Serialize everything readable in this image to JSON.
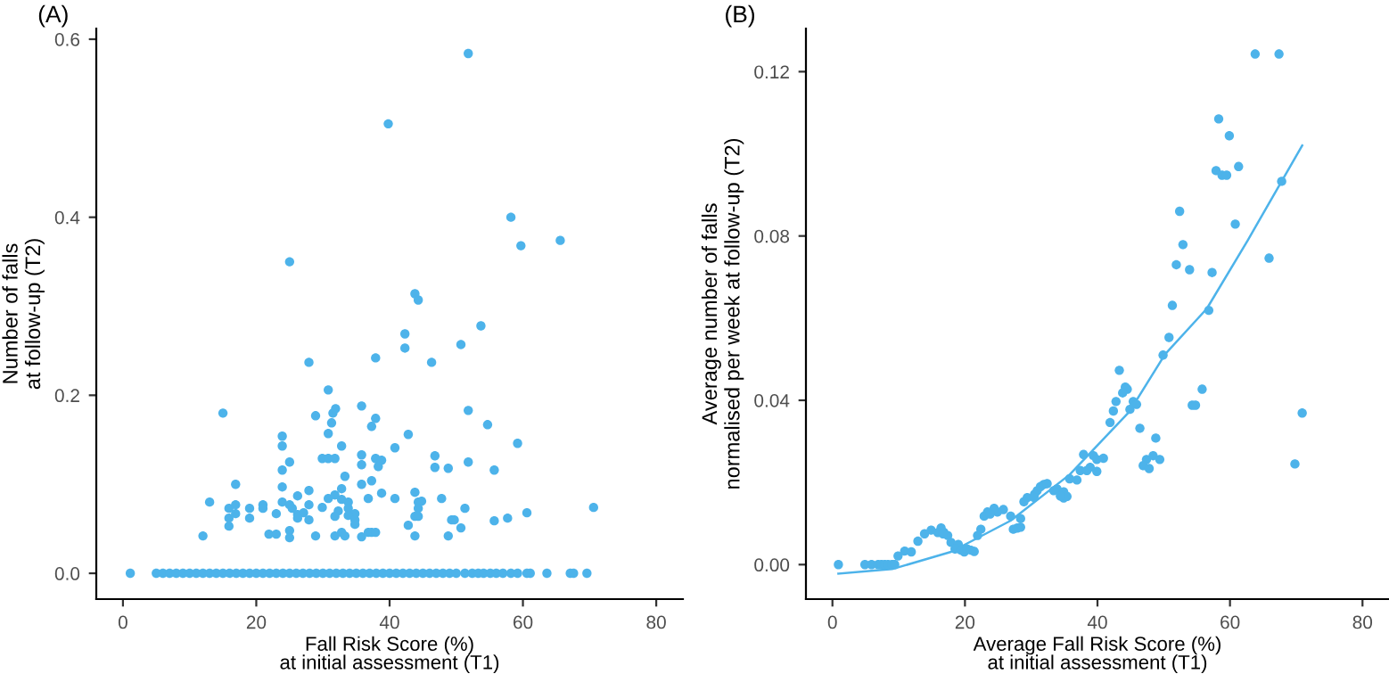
{
  "chart_data": [
    {
      "type": "scatter",
      "title": "(A)",
      "xlabel": "Fall Risk Score (%)\nat initial assessment (T1)",
      "ylabel": "Number of falls\nat follow-up (T2)",
      "xlim": [
        -4,
        84
      ],
      "ylim": [
        -0.029,
        0.612
      ],
      "xticks": [
        0,
        20,
        40,
        60,
        80
      ],
      "yticks": [
        {
          "value": 0,
          "label": "0.0"
        },
        {
          "value": 0.2,
          "label": "0.2"
        },
        {
          "value": 0.4,
          "label": "0.4"
        },
        {
          "value": 0.6,
          "label": "0.6"
        }
      ],
      "grid": false,
      "legend": false,
      "series": [
        {
          "color": "#4db3ea",
          "marker": "circle",
          "x": [
            51.8,
            39.8,
            58.2,
            59.7,
            65.6,
            25.0,
            43.8,
            44.3,
            53.7,
            42.3,
            42.3,
            50.7,
            27.9,
            37.9,
            46.3,
            30.8,
            15.0,
            28.9,
            31.5,
            31.9,
            31.3,
            35.8,
            37.9,
            37.3,
            51.8,
            54.7,
            30.8,
            42.8,
            23.9,
            23.9,
            32.8,
            40.8,
            59.2,
            29.9,
            30.8,
            31.8,
            25.0,
            35.8,
            37.9,
            38.8,
            38.3,
            35.8,
            46.8,
            51.8,
            46.8,
            48.8,
            55.7,
            23.9,
            33.3,
            16.9,
            37.3,
            35.8,
            23.9,
            32.8,
            27.9,
            43.8,
            38.8,
            26.2,
            30.8,
            31.8,
            36.8,
            40.8,
            47.8,
            13.0,
            23.9,
            32.8,
            33.8,
            44.3,
            44.8,
            25.0,
            27.9,
            16.9,
            21.0,
            15.9,
            19.0,
            21.0,
            25.4,
            29.9,
            33.8,
            51.3,
            70.6,
            16.9,
            23.0,
            26.2,
            27.1,
            32.3,
            34.8,
            44.3,
            60.6,
            15.9,
            19.0,
            26.2,
            27.9,
            31.8,
            33.8,
            34.8,
            43.8,
            44.3,
            49.3,
            49.7,
            55.7,
            57.7,
            15.9,
            34.8,
            42.8,
            50.7,
            25.0,
            21.9,
            23.0,
            12.0,
            25.0,
            28.9,
            31.8,
            32.8,
            33.3,
            35.8,
            36.8,
            37.3,
            37.9,
            43.8,
            48.8,
            1.1,
            5,
            6,
            7,
            8,
            9,
            10,
            11,
            12,
            13,
            14,
            15,
            16,
            17,
            18,
            19,
            20,
            21,
            22,
            23,
            24,
            25,
            26,
            27,
            28,
            29,
            30,
            31,
            32,
            33,
            34,
            35,
            36,
            37,
            38,
            39,
            40,
            41,
            42,
            43,
            44,
            45,
            46,
            47,
            48,
            49,
            50,
            51.3,
            52.4,
            53.3,
            54.1,
            55.1,
            56.0,
            57.0,
            58.2,
            59.2,
            60.6,
            61.1,
            63.6,
            67.1,
            67.6,
            69.6
          ],
          "values": [
            0.584,
            0.505,
            0.4,
            0.368,
            0.374,
            0.35,
            0.314,
            0.307,
            0.278,
            0.269,
            0.253,
            0.257,
            0.237,
            0.242,
            0.237,
            0.206,
            0.18,
            0.177,
            0.18,
            0.185,
            0.169,
            0.188,
            0.174,
            0.165,
            0.183,
            0.167,
            0.157,
            0.156,
            0.154,
            0.143,
            0.143,
            0.141,
            0.146,
            0.129,
            0.129,
            0.129,
            0.125,
            0.133,
            0.129,
            0.127,
            0.12,
            0.122,
            0.132,
            0.125,
            0.119,
            0.118,
            0.116,
            0.116,
            0.109,
            0.1,
            0.104,
            0.1,
            0.097,
            0.095,
            0.093,
            0.091,
            0.09,
            0.087,
            0.084,
            0.088,
            0.084,
            0.084,
            0.084,
            0.08,
            0.08,
            0.083,
            0.08,
            0.08,
            0.081,
            0.077,
            0.077,
            0.077,
            0.077,
            0.073,
            0.073,
            0.073,
            0.073,
            0.074,
            0.073,
            0.073,
            0.074,
            0.067,
            0.067,
            0.066,
            0.068,
            0.07,
            0.067,
            0.073,
            0.068,
            0.062,
            0.062,
            0.062,
            0.06,
            0.064,
            0.065,
            0.06,
            0.064,
            0.064,
            0.06,
            0.06,
            0.059,
            0.062,
            0.053,
            0.055,
            0.054,
            0.051,
            0.048,
            0.044,
            0.044,
            0.042,
            0.04,
            0.042,
            0.042,
            0.046,
            0.042,
            0.041,
            0.046,
            0.046,
            0.046,
            0.042,
            0.042,
            0,
            0,
            0,
            0,
            0,
            0,
            0,
            0,
            0,
            0,
            0,
            0,
            0,
            0,
            0,
            0,
            0,
            0,
            0,
            0,
            0,
            0,
            0,
            0,
            0,
            0,
            0,
            0,
            0,
            0,
            0,
            0,
            0,
            0,
            0,
            0,
            0,
            0,
            0,
            0,
            0,
            0,
            0,
            0,
            0,
            0,
            0,
            0,
            0,
            0,
            0,
            0,
            0,
            0,
            0,
            0,
            0,
            0,
            0,
            0,
            0,
            0
          ]
        }
      ]
    },
    {
      "type": "scatter",
      "title": "(B)",
      "xlabel": "Average Fall Risk Score (%)\nat initial assessment (T1)",
      "ylabel": "Average number of falls\nnormalised per week at follow-up (T2)",
      "xlim": [
        -4,
        84
      ],
      "ylim": [
        -0.0084,
        0.1305
      ],
      "xticks": [
        0,
        20,
        40,
        60,
        80
      ],
      "yticks": [
        {
          "value": 0,
          "label": "0.00"
        },
        {
          "value": 0.04,
          "label": "0.04"
        },
        {
          "value": 0.08,
          "label": "0.08"
        },
        {
          "value": 0.12,
          "label": "0.12"
        }
      ],
      "grid": false,
      "legend": false,
      "series": [
        {
          "color": "#4db3ea",
          "marker": "circle",
          "x": [
            63.8,
            67.4,
            58.3,
            59.9,
            57.9,
            58.8,
            59.5,
            61.3,
            67.8,
            52.4,
            60.8,
            52.9,
            65.9,
            51.9,
            53.9,
            57.3,
            51.3,
            56.8,
            50.8,
            49.9,
            43.3,
            44.2,
            44.5,
            43.8,
            55.8,
            42.8,
            45.4,
            45.9,
            44.9,
            42.4,
            54.3,
            54.8,
            70.9,
            41.9,
            46.4,
            48.8,
            37.9,
            39.4,
            39.9,
            40.9,
            48.4,
            47.4,
            49.4,
            46.9,
            47.8,
            69.8,
            38.9,
            37.4,
            38.4,
            39.9,
            35.8,
            36.9,
            33.9,
            33.4,
            34.9,
            35.4,
            34.9,
            34.4,
            31.4,
            31.9,
            32.4,
            30.9,
            30.5,
            29.4,
            30.4,
            28.9,
            28.4,
            26.9,
            25.8,
            24.9,
            24.4,
            23.4,
            22.9,
            23.8,
            22.4,
            21.9,
            28.4,
            27.9,
            27.3,
            16.4,
            14.9,
            15.9,
            16.8,
            17.4,
            16.7,
            13.9,
            12.9,
            17.9,
            19.0,
            18.5,
            10.9,
            11.9,
            9.9,
            19.4,
            19.9,
            20.3,
            20.9,
            21.4,
            0.9,
            4.9,
            5.9,
            6.9,
            7.4,
            7.9,
            8.4,
            9.0,
            9.4
          ],
          "values": [
            0.1243,
            0.1243,
            0.1085,
            0.1044,
            0.0959,
            0.0948,
            0.0948,
            0.0969,
            0.0933,
            0.086,
            0.0829,
            0.0779,
            0.0746,
            0.073,
            0.0718,
            0.0711,
            0.0631,
            0.0619,
            0.0553,
            0.051,
            0.0473,
            0.0432,
            0.0427,
            0.0418,
            0.0427,
            0.0397,
            0.0397,
            0.039,
            0.0378,
            0.0374,
            0.0388,
            0.0388,
            0.0369,
            0.0346,
            0.0332,
            0.0308,
            0.0268,
            0.0265,
            0.0256,
            0.0259,
            0.0265,
            0.0256,
            0.0256,
            0.0241,
            0.0234,
            0.0245,
            0.0237,
            0.0229,
            0.0229,
            0.0227,
            0.0209,
            0.0206,
            0.0184,
            0.018,
            0.0177,
            0.0166,
            0.0162,
            0.0167,
            0.019,
            0.0195,
            0.0197,
            0.018,
            0.0171,
            0.0163,
            0.0164,
            0.0153,
            0.0112,
            0.0118,
            0.0134,
            0.0128,
            0.0137,
            0.0128,
            0.0118,
            0.0123,
            0.0086,
            0.0071,
            0.0091,
            0.0089,
            0.0086,
            0.0089,
            0.0084,
            0.0078,
            0.0079,
            0.0071,
            0.0075,
            0.0075,
            0.0057,
            0.0054,
            0.0049,
            0.0038,
            0.0033,
            0.0031,
            0.0021,
            0.0035,
            0.0031,
            0.0038,
            0.0035,
            0.0032,
            0,
            0,
            0,
            0,
            0,
            0,
            0,
            0,
            0
          ]
        },
        {
          "type": "line",
          "color": "#4db3ea",
          "marker": "none",
          "x": [
            0.9,
            9.0,
            17.9,
            26.9,
            35.8,
            44.8,
            50.2,
            56.5,
            62.7,
            70.9
          ],
          "values": [
            -0.0022,
            -0.0011,
            0.0031,
            0.0107,
            0.0219,
            0.0372,
            0.0512,
            0.0623,
            0.079,
            0.102
          ]
        }
      ]
    }
  ]
}
